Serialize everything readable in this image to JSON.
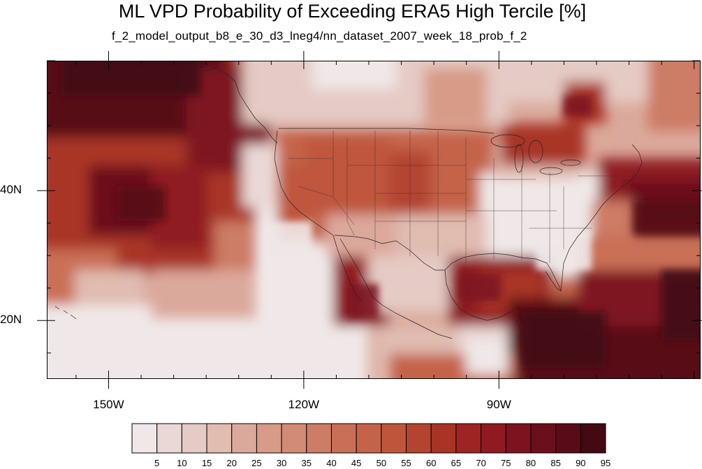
{
  "title": "ML VPD Probability of Exceeding ERA5 High Tercile [%]",
  "subtitle": "f_2_model_output_b8_e_30_d3_lneg4/nn_dataset_2007_week_18_prob_f_2",
  "axes": {
    "x_labels": [
      {
        "text": "150W",
        "lon": -150
      },
      {
        "text": "120W",
        "lon": -120
      },
      {
        "text": "90W",
        "lon": -90
      }
    ],
    "y_labels": [
      {
        "text": "40N",
        "lat": 40
      },
      {
        "text": "20N",
        "lat": 20
      }
    ],
    "lon_range": [
      -159.5,
      -59
    ],
    "lat_range": [
      11,
      60
    ]
  },
  "colorbar": {
    "levels": [
      "5",
      "10",
      "15",
      "20",
      "25",
      "30",
      "35",
      "40",
      "45",
      "50",
      "55",
      "60",
      "65",
      "70",
      "75",
      "80",
      "85",
      "90",
      "95"
    ],
    "colors": [
      "#f0e8e8",
      "#ead8d6",
      "#e5cbc5",
      "#e0bcb1",
      "#dba99b",
      "#d79b87",
      "#d28b75",
      "#cd7c65",
      "#ca6f57",
      "#c5634a",
      "#bf563c",
      "#b44430",
      "#a93426",
      "#9e2423",
      "#8f1a22",
      "#7e1320",
      "#6c0f1d",
      "#590c18",
      "#430a13"
    ]
  },
  "chart_data": {
    "type": "heatmap",
    "title": "ML VPD Probability of Exceeding ERA5 High Tercile [%]",
    "subtitle": "f_2_model_output_b8_e_30_d3_lneg4/nn_dataset_2007_week_18_prob_f_2",
    "x_ticks": [
      "150W",
      "120W",
      "90W"
    ],
    "y_ticks": [
      "40N",
      "20N"
    ],
    "xlim": [
      -159.5,
      -59
    ],
    "ylim": [
      11,
      60
    ],
    "colorbar_levels": [
      5,
      10,
      15,
      20,
      25,
      30,
      35,
      40,
      45,
      50,
      55,
      60,
      65,
      70,
      75,
      80,
      85,
      90,
      95
    ],
    "regions": [
      {
        "lon": [
          -159,
          -127
        ],
        "lat": [
          24,
          60
        ],
        "value": 75
      },
      {
        "lon": [
          -157,
          -135
        ],
        "lat": [
          50,
          60
        ],
        "value": 90
      },
      {
        "lon": [
          -135,
          -126
        ],
        "lat": [
          48,
          58
        ],
        "value": 85
      },
      {
        "lon": [
          -147,
          -136
        ],
        "lat": [
          37,
          45
        ],
        "value": 90
      },
      {
        "lon": [
          -126,
          -118
        ],
        "lat": [
          20,
          37
        ],
        "value": 10
      },
      {
        "lon": [
          -158,
          -118
        ],
        "lat": [
          11,
          20
        ],
        "value": 10
      },
      {
        "lon": [
          -124,
          -97
        ],
        "lat": [
          30,
          49
        ],
        "value": 50
      },
      {
        "lon": [
          -97,
          -68
        ],
        "lat": [
          25,
          42
        ],
        "value": 15
      },
      {
        "lon": [
          -98,
          -82
        ],
        "lat": [
          18,
          30
        ],
        "value": 75
      },
      {
        "lon": [
          -84,
          -59
        ],
        "lat": [
          14,
          27
        ],
        "value": 95
      },
      {
        "lon": [
          -75,
          -59
        ],
        "lat": [
          30,
          45
        ],
        "value": 85
      },
      {
        "lon": [
          -105,
          -60
        ],
        "lat": [
          11,
          18
        ],
        "value": 55
      }
    ]
  }
}
